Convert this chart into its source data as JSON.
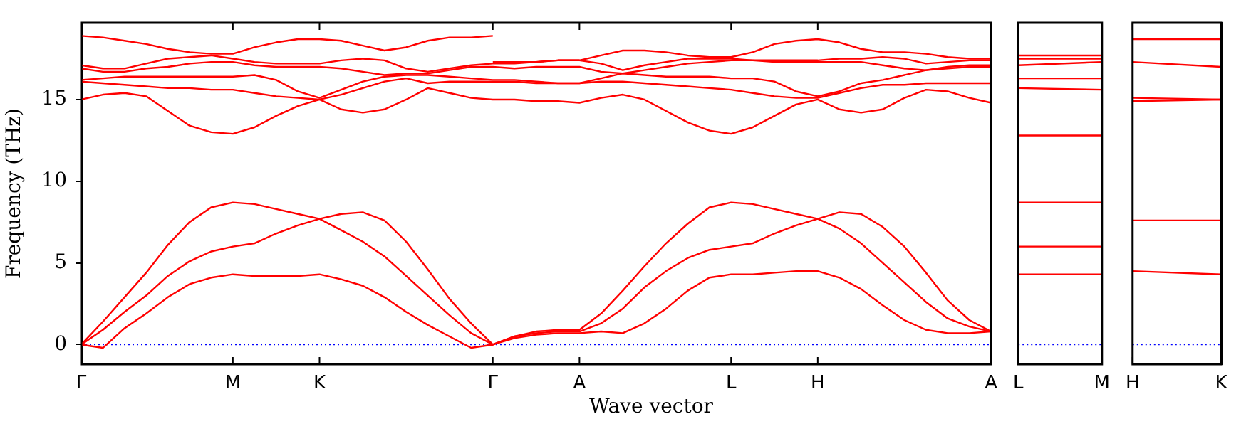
{
  "chart_data": [
    {
      "type": "line",
      "ylabel": "Frequency (THz)",
      "xlabel": "Wave vector",
      "ylim": [
        -1.2,
        19.7
      ],
      "yticks": [
        0,
        5,
        10,
        15
      ],
      "categories": [
        "Γ",
        null,
        null,
        null,
        null,
        null,
        null,
        "M",
        null,
        null,
        null,
        "K",
        null,
        null,
        null,
        null,
        null,
        null,
        null,
        "Γ",
        null,
        null,
        null,
        "A",
        null,
        null,
        null,
        null,
        null,
        null,
        "L",
        null,
        null,
        null,
        "H",
        null,
        null,
        null,
        null,
        null,
        null,
        null,
        "A"
      ],
      "grid": false,
      "line_style": "solid",
      "ref_lines": [
        {
          "axis": "y",
          "value": 0,
          "color": "#0000ff",
          "line_style": "dotted"
        }
      ],
      "series": [
        {
          "color": "#ff0000",
          "values": [
            0,
            -0.2,
            1.0,
            1.9,
            2.9,
            3.7,
            4.1,
            4.3,
            4.2,
            4.2,
            4.2,
            4.3,
            4.0,
            3.6,
            2.9,
            2.0,
            1.2,
            0.5,
            -0.2,
            0,
            0.4,
            0.6,
            0.7,
            0.7,
            0.8,
            0.7,
            1.3,
            2.2,
            3.3,
            4.1,
            4.3,
            4.3,
            4.4,
            4.5,
            4.5,
            4.1,
            3.4,
            2.4,
            1.5,
            0.9,
            0.7,
            0.7,
            0.8
          ]
        },
        {
          "color": "#ff0000",
          "values": [
            0,
            0.9,
            2.0,
            3.0,
            4.2,
            5.1,
            5.7,
            6.0,
            6.2,
            6.8,
            7.3,
            7.7,
            7.0,
            6.3,
            5.4,
            4.2,
            3.0,
            1.8,
            0.7,
            0,
            0.5,
            0.7,
            0.8,
            0.8,
            1.3,
            2.2,
            3.5,
            4.5,
            5.3,
            5.8,
            6.0,
            6.2,
            6.8,
            7.3,
            7.7,
            7.1,
            6.2,
            5.0,
            3.8,
            2.6,
            1.6,
            1.1,
            0.8
          ]
        },
        {
          "color": "#ff0000",
          "values": [
            0,
            1.4,
            2.9,
            4.4,
            6.1,
            7.5,
            8.4,
            8.7,
            8.6,
            8.3,
            8.0,
            7.7,
            8.0,
            8.1,
            7.6,
            6.3,
            4.6,
            2.8,
            1.3,
            0,
            0.5,
            0.8,
            0.9,
            0.9,
            1.9,
            3.3,
            4.8,
            6.2,
            7.4,
            8.4,
            8.7,
            8.6,
            8.3,
            8.0,
            7.7,
            8.1,
            8.0,
            7.2,
            6.0,
            4.4,
            2.7,
            1.5,
            0.8
          ]
        },
        {
          "color": "#ff0000",
          "values": [
            15.0,
            15.3,
            15.4,
            15.2,
            14.3,
            13.4,
            13.0,
            12.9,
            13.3,
            14.0,
            14.6,
            15.0,
            14.4,
            14.2,
            14.4,
            15.0,
            15.7,
            15.4,
            15.1,
            15.0,
            15.0,
            14.9,
            14.9,
            14.8,
            15.1,
            15.3,
            15.0,
            14.3,
            13.6,
            13.1,
            12.9,
            13.3,
            14.0,
            14.7,
            15.0,
            14.4,
            14.2,
            14.4,
            15.1,
            15.6,
            15.5,
            15.1,
            14.8
          ]
        },
        {
          "color": "#ff0000",
          "values": [
            16.1,
            16.0,
            15.9,
            15.8,
            15.7,
            15.7,
            15.6,
            15.6,
            15.4,
            15.2,
            15.1,
            15.0,
            15.3,
            15.7,
            16.1,
            16.3,
            16.0,
            16.1,
            16.1,
            16.1,
            16.1,
            16.0,
            16.0,
            16.0,
            16.1,
            16.1,
            16.0,
            15.9,
            15.8,
            15.7,
            15.6,
            15.4,
            15.2,
            15.1,
            15.1,
            15.4,
            15.7,
            15.9,
            15.9,
            16.0,
            16.0,
            16.0,
            16.0
          ]
        },
        {
          "color": "#ff0000",
          "values": [
            16.2,
            16.3,
            16.4,
            16.4,
            16.4,
            16.4,
            16.4,
            16.4,
            16.5,
            16.2,
            15.5,
            15.1,
            15.6,
            16.1,
            16.4,
            16.5,
            16.5,
            16.4,
            16.3,
            16.2,
            16.2,
            16.1,
            16.0,
            16.0,
            16.3,
            16.6,
            16.5,
            16.4,
            16.4,
            16.4,
            16.3,
            16.3,
            16.1,
            15.5,
            15.2,
            15.5,
            16.0,
            16.2,
            16.5,
            16.8,
            16.9,
            17.0,
            17.0
          ]
        },
        {
          "color": "#ff0000",
          "values": [
            16.9,
            16.7,
            16.7,
            16.9,
            17.0,
            17.2,
            17.3,
            17.3,
            17.1,
            17.0,
            17.0,
            17.0,
            16.9,
            16.7,
            16.5,
            16.6,
            16.6,
            16.8,
            17.0,
            17.0,
            16.9,
            17.0,
            17.0,
            17.0,
            16.7,
            16.6,
            16.8,
            17.0,
            17.2,
            17.3,
            17.4,
            17.4,
            17.3,
            17.3,
            17.3,
            17.3,
            17.3,
            17.1,
            16.9,
            16.8,
            17.0,
            17.1,
            17.1
          ]
        },
        {
          "color": "#ff0000",
          "values": [
            17.1,
            16.9,
            16.9,
            17.2,
            17.5,
            17.6,
            17.7,
            17.5,
            17.3,
            17.2,
            17.2,
            17.2,
            17.4,
            17.5,
            17.4,
            16.9,
            16.7,
            16.9,
            17.1,
            17.2,
            17.2,
            17.3,
            17.4,
            17.4,
            17.2,
            16.8,
            17.1,
            17.3,
            17.5,
            17.5,
            17.5,
            17.4,
            17.4,
            17.4,
            17.4,
            17.5,
            17.5,
            17.6,
            17.5,
            17.2,
            17.3,
            17.4,
            17.4
          ]
        },
        {
          "color": "#ff0000",
          "values": [
            18.9,
            18.8,
            18.6,
            18.4,
            18.1,
            17.9,
            17.8,
            17.8,
            18.2,
            18.5,
            18.7,
            18.7,
            18.6,
            18.3,
            18.0,
            18.2,
            18.6,
            18.8,
            18.8,
            18.9,
            null,
            null,
            null,
            null,
            null,
            null,
            null,
            null,
            null,
            null,
            null,
            null,
            null,
            null,
            null,
            null,
            null,
            null,
            null,
            null,
            null,
            null,
            null
          ]
        },
        {
          "color": "#ff0000",
          "values": [
            null,
            null,
            null,
            null,
            null,
            null,
            null,
            null,
            null,
            null,
            null,
            null,
            null,
            null,
            null,
            null,
            null,
            null,
            null,
            17.3,
            17.3,
            17.3,
            17.4,
            17.4,
            17.7,
            18.0,
            18.0,
            17.9,
            17.7,
            17.6,
            17.6,
            17.9,
            18.4,
            18.6,
            18.7,
            18.5,
            18.1,
            17.9,
            17.9,
            17.8,
            17.6,
            17.5,
            17.5
          ]
        }
      ]
    },
    {
      "type": "line",
      "ylim": [
        -1.2,
        19.7
      ],
      "tick_labels": "x",
      "grid": "x",
      "line_style": "solid",
      "categories": [
        "L",
        "M"
      ],
      "ref_lines": [
        {
          "axis": "y",
          "value": 0,
          "color": "#0000ff",
          "line_style": "dotted"
        }
      ],
      "series": [
        {
          "color": "#ff0000",
          "values": [
            4.3,
            4.3
          ]
        },
        {
          "color": "#ff0000",
          "values": [
            6.0,
            6.0
          ]
        },
        {
          "color": "#ff0000",
          "values": [
            8.7,
            8.7
          ]
        },
        {
          "color": "#ff0000",
          "values": [
            12.8,
            12.8
          ]
        },
        {
          "color": "#ff0000",
          "values": [
            15.7,
            15.6
          ]
        },
        {
          "color": "#ff0000",
          "values": [
            16.3,
            16.3
          ]
        },
        {
          "color": "#ff0000",
          "values": [
            17.1,
            17.3
          ]
        },
        {
          "color": "#ff0000",
          "values": [
            17.5,
            17.5
          ]
        },
        {
          "color": "#ff0000",
          "values": [
            17.7,
            17.7
          ]
        }
      ]
    },
    {
      "type": "line",
      "ylim": [
        -1.2,
        19.7
      ],
      "tick_labels": "x",
      "grid": "x",
      "line_style": "solid",
      "categories": [
        "H",
        "K"
      ],
      "ref_lines": [
        {
          "axis": "y",
          "value": 0,
          "color": "#0000ff",
          "line_style": "dotted"
        }
      ],
      "series": [
        {
          "color": "#ff0000",
          "values": [
            4.5,
            4.3
          ]
        },
        {
          "color": "#ff0000",
          "values": [
            7.6,
            7.6
          ]
        },
        {
          "color": "#ff0000",
          "values": [
            14.9,
            15.0
          ]
        },
        {
          "color": "#ff0000",
          "values": [
            15.1,
            15.0
          ]
        },
        {
          "color": "#ff0000",
          "values": [
            17.3,
            17.0
          ]
        },
        {
          "color": "#ff0000",
          "values": [
            18.7,
            18.7
          ]
        }
      ]
    }
  ]
}
